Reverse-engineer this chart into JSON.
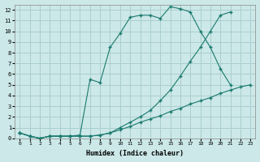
{
  "xlabel": "Humidex (Indice chaleur)",
  "background_color": "#cce8e8",
  "grid_color": "#aacece",
  "line_color": "#1a7a6e",
  "xlim": [
    -0.5,
    23.5
  ],
  "ylim": [
    0,
    12.5
  ],
  "xticks": [
    0,
    1,
    2,
    3,
    4,
    5,
    6,
    7,
    8,
    9,
    10,
    11,
    12,
    13,
    14,
    15,
    16,
    17,
    18,
    19,
    20,
    21,
    22,
    23
  ],
  "yticks": [
    0,
    1,
    2,
    3,
    4,
    5,
    6,
    7,
    8,
    9,
    10,
    11,
    12
  ],
  "line1_x": [
    0,
    1,
    2,
    3,
    4,
    5,
    6,
    7,
    8,
    9,
    10,
    11,
    12,
    13,
    14,
    15,
    16,
    17,
    18,
    19,
    20,
    21,
    22,
    23
  ],
  "line1_y": [
    0.5,
    0.2,
    0.0,
    0.2,
    0.2,
    0.2,
    0.2,
    0.2,
    0.3,
    0.5,
    0.8,
    1.1,
    1.5,
    1.8,
    2.1,
    2.5,
    2.8,
    3.2,
    3.5,
    3.8,
    4.2,
    4.5,
    4.8,
    5.0
  ],
  "line2_x": [
    0,
    1,
    2,
    3,
    4,
    5,
    6,
    7,
    8,
    9,
    10,
    11,
    12,
    13,
    14,
    15,
    16,
    17,
    18,
    19,
    20,
    21,
    22
  ],
  "line2_y": [
    0.5,
    0.2,
    0.0,
    0.2,
    0.2,
    0.2,
    0.3,
    5.5,
    5.2,
    8.5,
    9.8,
    11.3,
    11.5,
    11.5,
    11.2,
    12.3,
    12.1,
    11.8,
    10.0,
    8.5,
    6.5,
    5.0,
    null
  ],
  "line3_x": [
    0,
    1,
    2,
    3,
    4,
    5,
    6,
    7,
    8,
    9,
    10,
    11,
    12,
    13,
    14,
    15,
    16,
    17,
    18,
    19,
    20,
    21,
    22
  ],
  "line3_y": [
    0.5,
    0.2,
    0.0,
    0.2,
    0.2,
    0.2,
    0.2,
    0.2,
    0.3,
    0.5,
    1.0,
    1.5,
    2.0,
    2.6,
    3.5,
    4.5,
    5.8,
    7.2,
    8.5,
    10.0,
    11.5,
    11.8,
    null
  ]
}
